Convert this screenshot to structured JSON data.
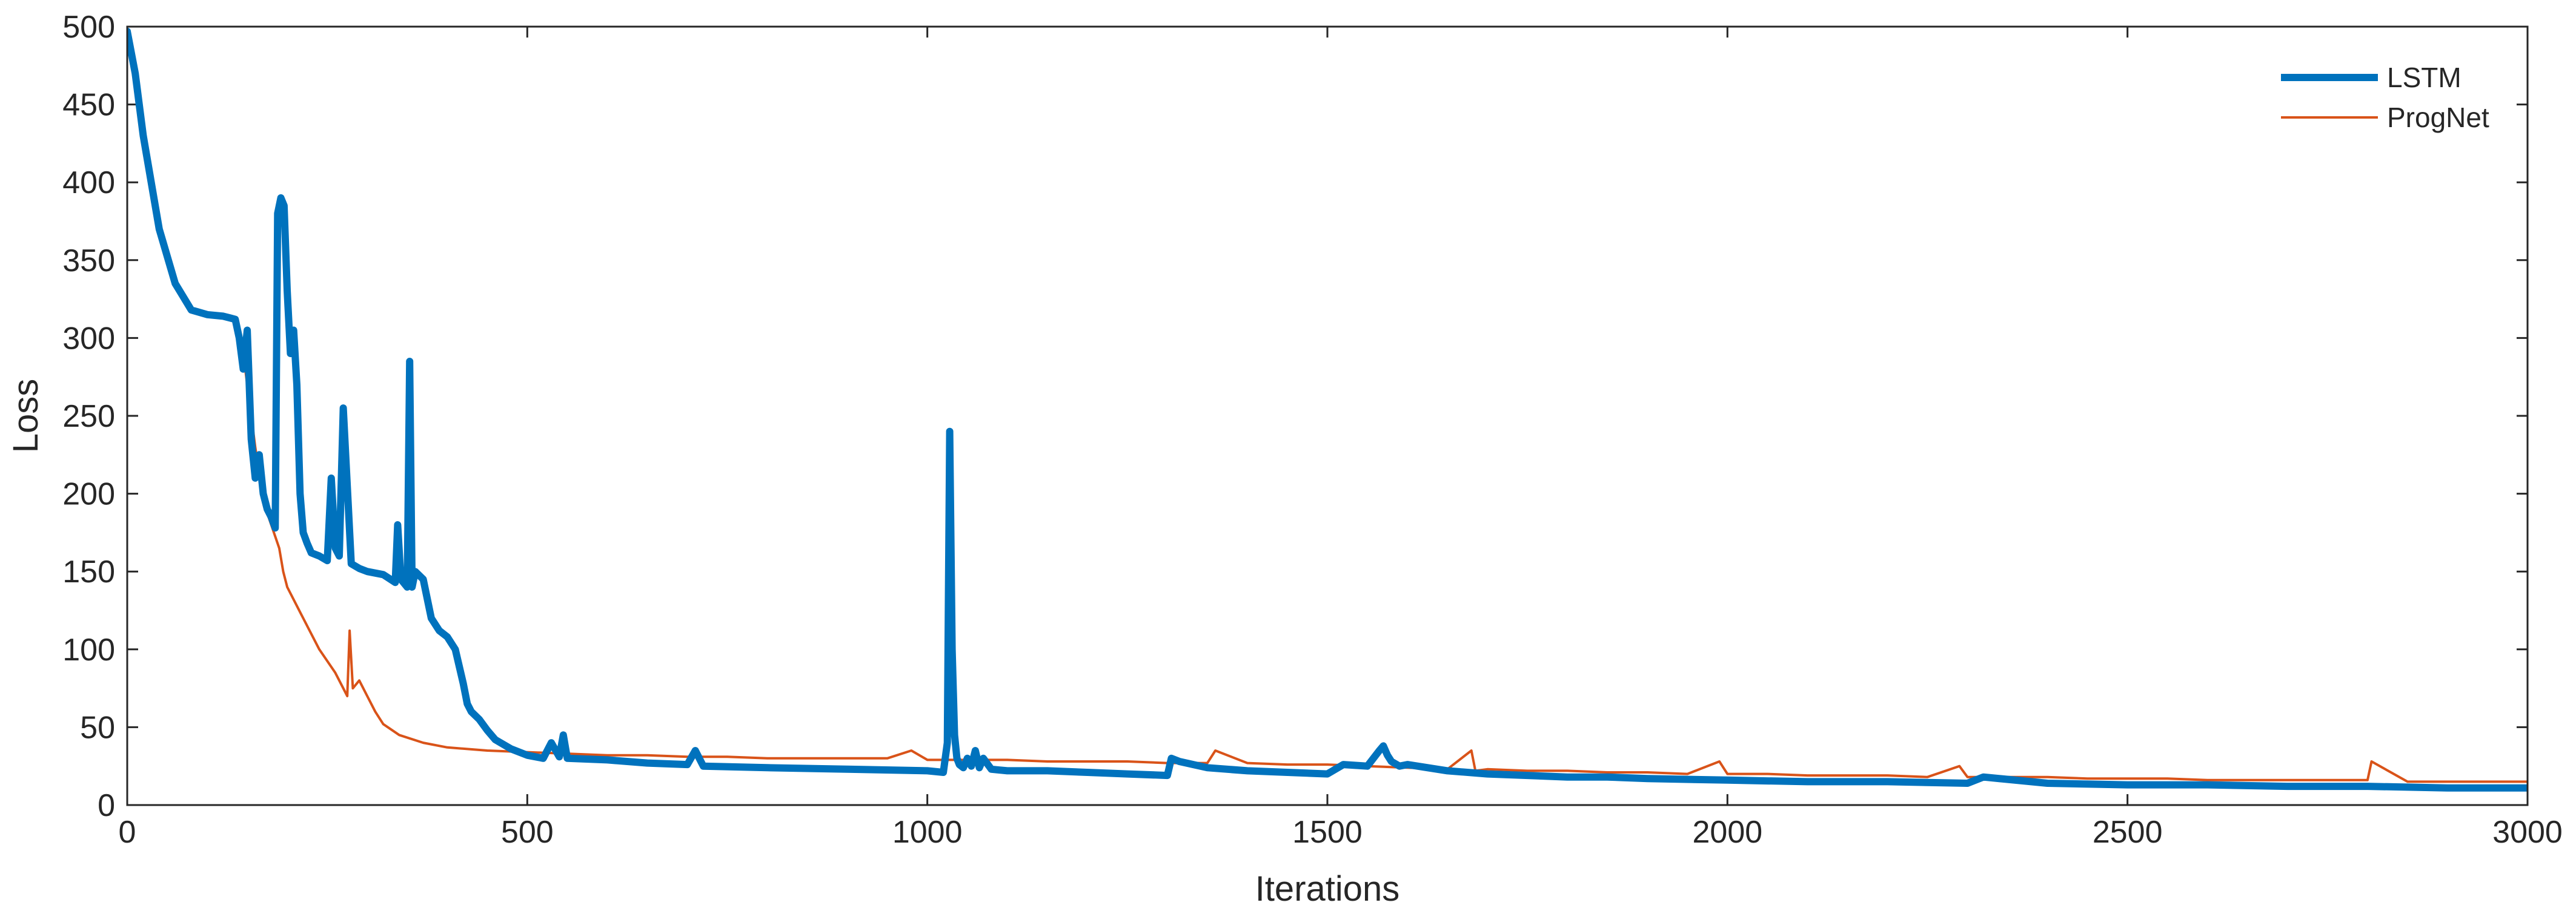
{
  "chart_data": {
    "type": "line",
    "title": "",
    "xlabel": "Iterations",
    "ylabel": "Loss",
    "xlim": [
      0,
      3000
    ],
    "ylim": [
      0,
      500
    ],
    "xticks": [
      "0",
      "500",
      "1000",
      "1500",
      "2000",
      "2500",
      "3000"
    ],
    "yticks": [
      "0",
      "50",
      "100",
      "150",
      "200",
      "250",
      "300",
      "350",
      "400",
      "450",
      "500"
    ],
    "grid": false,
    "legend_position": "top-right",
    "series": [
      {
        "name": "LSTM",
        "color": "#0072BD",
        "style": "thick",
        "x": [
          0,
          10,
          20,
          40,
          60,
          80,
          100,
          120,
          135,
          140,
          145,
          150,
          155,
          160,
          165,
          170,
          175,
          180,
          185,
          188,
          192,
          196,
          200,
          204,
          208,
          212,
          216,
          220,
          225,
          230,
          240,
          250,
          255,
          260,
          265,
          270,
          280,
          290,
          300,
          320,
          335,
          338,
          342,
          350,
          353,
          356,
          360,
          370,
          380,
          390,
          400,
          410,
          420,
          425,
          430,
          440,
          450,
          460,
          480,
          500,
          520,
          530,
          540,
          545,
          550,
          600,
          650,
          700,
          710,
          720,
          800,
          900,
          1000,
          1020,
          1025,
          1028,
          1031,
          1034,
          1037,
          1040,
          1045,
          1050,
          1055,
          1060,
          1065,
          1070,
          1080,
          1100,
          1150,
          1200,
          1250,
          1300,
          1305,
          1315,
          1350,
          1400,
          1450,
          1500,
          1520,
          1550,
          1565,
          1570,
          1575,
          1580,
          1590,
          1600,
          1650,
          1700,
          1750,
          1800,
          1850,
          1900,
          2000,
          2100,
          2200,
          2300,
          2320,
          2400,
          2500,
          2600,
          2700,
          2800,
          2900,
          3000
        ],
        "y": [
          497,
          470,
          430,
          370,
          335,
          318,
          315,
          314,
          312,
          300,
          280,
          305,
          235,
          210,
          225,
          200,
          190,
          185,
          178,
          380,
          390,
          385,
          330,
          290,
          305,
          270,
          200,
          175,
          168,
          162,
          160,
          157,
          210,
          165,
          160,
          255,
          155,
          152,
          150,
          148,
          143,
          180,
          145,
          140,
          285,
          140,
          150,
          145,
          120,
          112,
          108,
          100,
          78,
          65,
          60,
          55,
          48,
          42,
          36,
          32,
          30,
          40,
          31,
          45,
          30,
          29,
          27,
          26,
          35,
          25,
          24,
          23,
          22,
          21,
          40,
          240,
          100,
          45,
          30,
          26,
          24,
          30,
          25,
          35,
          24,
          30,
          23,
          22,
          22,
          21,
          20,
          19,
          30,
          28,
          24,
          22,
          21,
          20,
          26,
          25,
          35,
          38,
          32,
          28,
          25,
          26,
          22,
          20,
          19,
          18,
          18,
          17,
          16,
          15,
          15,
          14,
          18,
          14,
          13,
          13,
          12,
          12,
          11,
          11
        ]
      },
      {
        "name": "ProgNet",
        "color": "#D95319",
        "style": "thin",
        "x": [
          0,
          10,
          20,
          40,
          60,
          80,
          100,
          120,
          135,
          145,
          150,
          160,
          170,
          180,
          190,
          195,
          200,
          220,
          240,
          260,
          270,
          275,
          278,
          282,
          290,
          300,
          310,
          320,
          340,
          370,
          400,
          450,
          500,
          550,
          600,
          650,
          700,
          750,
          800,
          850,
          900,
          950,
          980,
          1000,
          1050,
          1100,
          1150,
          1200,
          1250,
          1300,
          1350,
          1360,
          1400,
          1450,
          1500,
          1550,
          1600,
          1650,
          1680,
          1685,
          1700,
          1750,
          1800,
          1850,
          1900,
          1950,
          1990,
          2000,
          2050,
          2100,
          2150,
          2200,
          2250,
          2290,
          2300,
          2350,
          2400,
          2450,
          2500,
          2550,
          2600,
          2650,
          2700,
          2750,
          2800,
          2805,
          2850,
          2900,
          2950,
          3000
        ],
        "y": [
          497,
          470,
          430,
          370,
          335,
          318,
          315,
          314,
          312,
          290,
          270,
          230,
          195,
          180,
          165,
          150,
          140,
          120,
          100,
          85,
          75,
          70,
          112,
          75,
          80,
          70,
          60,
          52,
          45,
          40,
          37,
          35,
          34,
          33,
          32,
          32,
          31,
          31,
          30,
          30,
          30,
          30,
          35,
          29,
          29,
          29,
          28,
          28,
          28,
          27,
          27,
          35,
          27,
          26,
          26,
          25,
          24,
          23,
          35,
          22,
          23,
          22,
          22,
          21,
          21,
          20,
          28,
          20,
          20,
          19,
          19,
          19,
          18,
          25,
          18,
          18,
          18,
          17,
          17,
          17,
          16,
          16,
          16,
          16,
          16,
          28,
          15,
          15,
          15,
          15
        ]
      }
    ]
  }
}
